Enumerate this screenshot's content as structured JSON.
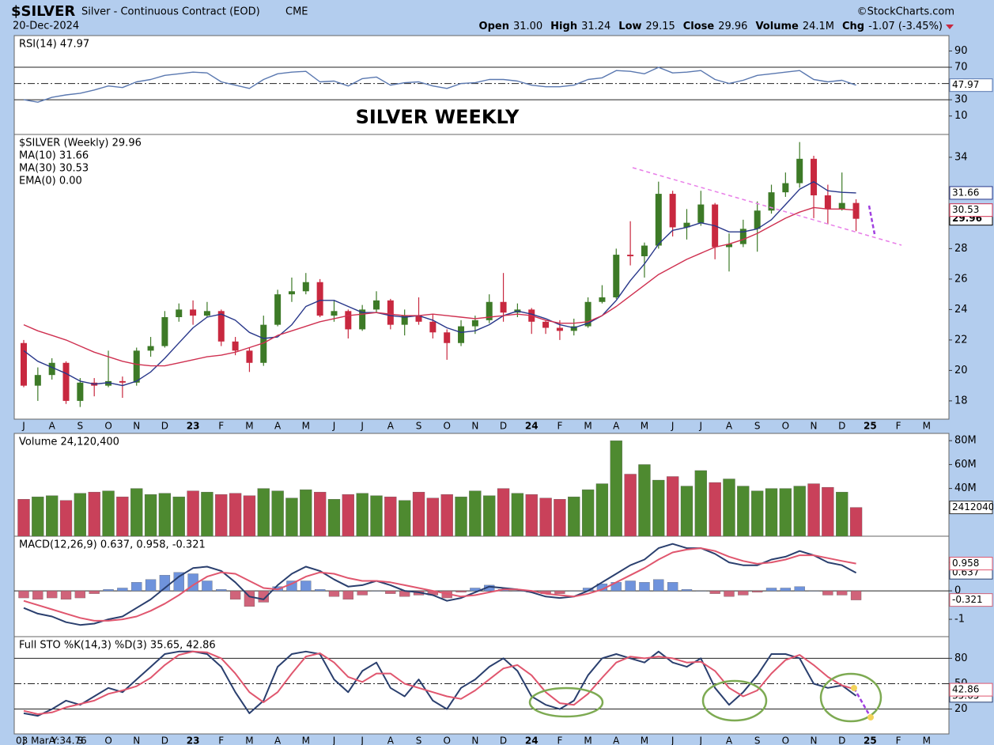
{
  "header": {
    "symbol": "$SILVER",
    "description": "Silver - Continuous Contract (EOD)",
    "exchange": "CME",
    "source": "©StockCharts.com",
    "date": "20-Dec-2024",
    "quote": [
      {
        "label": "Open",
        "value": "31.00"
      },
      {
        "label": "High",
        "value": "31.24"
      },
      {
        "label": "Low",
        "value": "29.15"
      },
      {
        "label": "Close",
        "value": "29.96"
      },
      {
        "label": "Volume",
        "value": "24.1M"
      },
      {
        "label": "Chg",
        "value": "-1.07 (-3.45%)"
      }
    ],
    "cursor": "03 Mar Y:34.76"
  },
  "chart_data": [
    {
      "type": "line",
      "annotation": "SILVER WEEKLY",
      "series": [
        {
          "name": "RSI(14) 47.97",
          "color": "#5a78b0",
          "values": [
            30,
            27,
            33,
            36,
            38,
            42,
            47,
            45,
            52,
            55,
            60,
            62,
            64,
            63,
            52,
            48,
            44,
            55,
            62,
            64,
            65,
            52,
            53,
            47,
            56,
            58,
            48,
            51,
            52,
            47,
            44,
            50,
            51,
            55,
            55,
            53,
            48,
            46,
            46,
            48,
            55,
            57,
            66,
            65,
            62,
            70,
            63,
            64,
            66,
            55,
            50,
            54,
            60,
            62,
            64,
            66,
            55,
            52,
            54,
            47.97,
            null,
            null,
            null,
            null,
            null,
            null
          ]
        }
      ],
      "ylim": [
        -12.7,
        109
      ],
      "yticks": [
        10,
        30,
        70,
        90
      ],
      "ref_lines": [
        {
          "value": 70,
          "style": "solid"
        },
        {
          "value": 50,
          "style": "dashdot"
        },
        {
          "value": 30,
          "style": "solid"
        }
      ]
    },
    {
      "type": "candlestick",
      "name": "$SILVER (Weekly) 29.96",
      "categories": [
        "J",
        null,
        "A",
        null,
        "S",
        null,
        "O",
        null,
        "N",
        null,
        "D",
        null,
        "23",
        null,
        "F",
        null,
        "M",
        null,
        "A",
        null,
        "M",
        null,
        "J",
        null,
        "J",
        null,
        "A",
        null,
        "S",
        null,
        "O",
        null,
        "N",
        null,
        "D",
        null,
        "24",
        null,
        "F",
        null,
        "M",
        null,
        "A",
        null,
        "M",
        null,
        "J",
        null,
        "J",
        null,
        "A",
        null,
        "S",
        null,
        "O",
        null,
        "N",
        null,
        "D",
        null,
        "25",
        null,
        "F",
        null,
        "M",
        null
      ],
      "open": [
        21.8,
        19.0,
        19.7,
        20.5,
        18.0,
        19.2,
        19.0,
        19.3,
        19.2,
        21.3,
        21.6,
        23.5,
        24.0,
        23.6,
        23.9,
        21.9,
        21.3,
        20.5,
        23.0,
        25.0,
        25.2,
        25.8,
        23.6,
        23.9,
        22.7,
        24.0,
        24.6,
        23.0,
        23.6,
        23.2,
        22.5,
        21.8,
        22.9,
        23.3,
        24.5,
        23.8,
        24.0,
        23.2,
        22.8,
        22.6,
        22.9,
        24.5,
        24.8,
        27.6,
        27.5,
        28.2,
        31.6,
        29.4,
        29.7,
        30.9,
        28.1,
        28.3,
        29.3,
        30.5,
        31.7,
        32.3,
        33.9,
        31.5,
        30.6,
        31.0,
        null,
        null,
        null,
        null,
        null,
        null
      ],
      "high": [
        22.0,
        20.2,
        20.8,
        20.6,
        19.5,
        19.5,
        21.3,
        19.6,
        21.5,
        22.2,
        23.9,
        24.4,
        24.6,
        24.5,
        24.0,
        22.2,
        21.5,
        23.6,
        25.3,
        26.1,
        26.4,
        26.0,
        24.6,
        24.0,
        24.3,
        25.2,
        24.7,
        24.0,
        24.8,
        23.7,
        22.7,
        23.3,
        23.6,
        25.0,
        26.4,
        24.4,
        24.1,
        23.3,
        23.3,
        23.4,
        24.8,
        25.6,
        28.0,
        29.8,
        28.4,
        32.4,
        31.8,
        30.6,
        31.8,
        31.0,
        29.0,
        29.9,
        31.1,
        32.2,
        33.0,
        35.0,
        34.1,
        32.2,
        33.0,
        31.24,
        null,
        null,
        null,
        null,
        null,
        null
      ],
      "low": [
        18.9,
        18.0,
        19.4,
        17.8,
        17.6,
        18.3,
        18.9,
        18.2,
        19.0,
        20.9,
        21.5,
        23.2,
        23.0,
        23.5,
        21.6,
        21.0,
        19.9,
        20.3,
        22.9,
        24.5,
        25.0,
        23.5,
        23.2,
        22.1,
        22.6,
        23.8,
        22.7,
        22.3,
        23.0,
        22.1,
        20.7,
        21.6,
        22.4,
        23.1,
        23.2,
        23.5,
        22.4,
        22.4,
        22.0,
        22.3,
        22.8,
        24.4,
        24.7,
        26.9,
        26.1,
        28.0,
        28.8,
        28.6,
        29.5,
        27.3,
        26.5,
        28.1,
        27.8,
        30.3,
        31.4,
        32.0,
        30.0,
        29.6,
        30.5,
        29.15,
        null,
        null,
        null,
        null,
        null,
        null
      ],
      "close": [
        19.0,
        19.7,
        20.5,
        18.0,
        19.2,
        19.0,
        19.3,
        19.2,
        21.3,
        21.6,
        23.5,
        24.0,
        23.6,
        23.9,
        21.9,
        21.3,
        20.5,
        23.0,
        25.0,
        25.2,
        25.8,
        23.6,
        23.9,
        22.7,
        24.0,
        24.6,
        23.0,
        23.6,
        23.2,
        22.5,
        21.8,
        22.9,
        23.3,
        24.5,
        23.8,
        24.0,
        23.2,
        22.8,
        22.6,
        22.9,
        24.5,
        24.8,
        27.6,
        27.5,
        28.2,
        31.6,
        29.4,
        29.7,
        30.9,
        28.1,
        28.3,
        29.3,
        30.5,
        31.7,
        32.3,
        33.9,
        31.5,
        30.6,
        31.0,
        29.96,
        null,
        null,
        null,
        null,
        null,
        null
      ],
      "up_color": "#3d7a27",
      "down_color": "#c8283f",
      "series": [
        {
          "name": "MA(10) 31.66",
          "color": "#28378a",
          "values": [
            21.3,
            20.6,
            20.2,
            19.8,
            19.3,
            19.1,
            19.2,
            19.0,
            19.3,
            19.9,
            20.8,
            21.8,
            22.8,
            23.5,
            23.7,
            23.3,
            22.5,
            22.1,
            22.2,
            23.0,
            24.2,
            24.6,
            24.6,
            24.2,
            23.8,
            23.8,
            23.6,
            23.5,
            23.6,
            23.3,
            22.8,
            22.5,
            22.6,
            23.0,
            23.6,
            23.9,
            23.7,
            23.4,
            23.0,
            22.8,
            23.1,
            23.6,
            24.6,
            25.9,
            27.0,
            28.3,
            29.2,
            29.4,
            29.7,
            29.5,
            29.1,
            29.1,
            29.3,
            29.9,
            30.9,
            31.9,
            32.4,
            31.8,
            31.7,
            31.66,
            null,
            null,
            null,
            null,
            null,
            null
          ]
        },
        {
          "name": "MA(30) 30.53",
          "color": "#cf3050",
          "values": [
            23.0,
            22.6,
            22.3,
            22.0,
            21.6,
            21.2,
            20.9,
            20.6,
            20.4,
            20.3,
            20.3,
            20.5,
            20.7,
            20.9,
            21.0,
            21.2,
            21.5,
            21.8,
            22.3,
            22.6,
            22.9,
            23.2,
            23.4,
            23.6,
            23.7,
            23.8,
            23.7,
            23.6,
            23.6,
            23.7,
            23.6,
            23.5,
            23.4,
            23.5,
            23.6,
            23.7,
            23.6,
            23.3,
            23.1,
            23.1,
            23.2,
            23.6,
            24.2,
            24.9,
            25.6,
            26.3,
            26.8,
            27.3,
            27.7,
            28.1,
            28.3,
            28.6,
            29.0,
            29.5,
            30.0,
            30.4,
            30.7,
            30.6,
            30.6,
            30.53,
            null,
            null,
            null,
            null,
            null,
            null
          ]
        },
        {
          "name": "EMA(0) 0.00",
          "color": "#2e7d32"
        }
      ],
      "ylim": [
        16.8,
        35.5
      ],
      "yticks": [
        18,
        20,
        22,
        24,
        26,
        28,
        34
      ]
    },
    {
      "type": "bar",
      "up_color": "#4e8a30",
      "down_color": "#c9415a",
      "series": [
        {
          "name": "Volume 24,120,400",
          "color": "#333333",
          "values": [
            31000000,
            33000000,
            34000000,
            30000000,
            36000000,
            37000000,
            38000000,
            33000000,
            40000000,
            35000000,
            36000000,
            33000000,
            38000000,
            37000000,
            35000000,
            36000000,
            34000000,
            40000000,
            38000000,
            32000000,
            39000000,
            37000000,
            31000000,
            35000000,
            36000000,
            34000000,
            33000000,
            30000000,
            37000000,
            32000000,
            35000000,
            33000000,
            38000000,
            34000000,
            40000000,
            36000000,
            35000000,
            32000000,
            31000000,
            33000000,
            39000000,
            44000000,
            80000000,
            52000000,
            60000000,
            47000000,
            50000000,
            42000000,
            55000000,
            45000000,
            48000000,
            42000000,
            38000000,
            40000000,
            40000000,
            42000000,
            44000000,
            41000000,
            37000000,
            24120400,
            null,
            null,
            null,
            null,
            null,
            null
          ]
        }
      ],
      "ylim": [
        0,
        86100000
      ],
      "yticks": [
        {
          "value": 40000000,
          "label": "40M"
        },
        {
          "value": 60000000,
          "label": "60M"
        },
        {
          "value": 80000000,
          "label": "80M"
        }
      ]
    },
    {
      "type": "line",
      "title": "MACD(12,26,9) 0.637, 0.958, -0.321",
      "series": [
        {
          "color": "#2a3f6e",
          "values": [
            -0.6,
            -0.8,
            -0.9,
            -1.1,
            -1.2,
            -1.15,
            -1.0,
            -0.9,
            -0.6,
            -0.3,
            0.1,
            0.5,
            0.8,
            0.85,
            0.7,
            0.3,
            -0.2,
            -0.3,
            0.2,
            0.6,
            0.85,
            0.7,
            0.4,
            0.15,
            0.2,
            0.35,
            0.2,
            0.0,
            -0.05,
            -0.15,
            -0.35,
            -0.25,
            -0.05,
            0.15,
            0.1,
            0.05,
            -0.05,
            -0.2,
            -0.25,
            -0.2,
            0.0,
            0.3,
            0.6,
            0.9,
            1.1,
            1.5,
            1.65,
            1.5,
            1.5,
            1.3,
            1.0,
            0.9,
            0.9,
            1.1,
            1.2,
            1.4,
            1.25,
            1.0,
            0.9,
            0.637,
            null,
            null,
            null,
            null,
            null,
            null
          ]
        },
        {
          "color": "#e0566e",
          "values": [
            -0.35,
            -0.5,
            -0.65,
            -0.8,
            -0.95,
            -1.05,
            -1.05,
            -1.0,
            -0.9,
            -0.7,
            -0.45,
            -0.15,
            0.2,
            0.5,
            0.65,
            0.6,
            0.35,
            0.1,
            0.05,
            0.25,
            0.5,
            0.65,
            0.6,
            0.45,
            0.35,
            0.35,
            0.3,
            0.2,
            0.1,
            0.0,
            -0.1,
            -0.2,
            -0.15,
            -0.05,
            0.05,
            0.05,
            0.0,
            -0.1,
            -0.15,
            -0.2,
            -0.1,
            0.05,
            0.3,
            0.55,
            0.8,
            1.1,
            1.35,
            1.45,
            1.5,
            1.4,
            1.2,
            1.05,
            0.95,
            1.0,
            1.1,
            1.25,
            1.25,
            1.15,
            1.05,
            0.958,
            null,
            null,
            null,
            null,
            null,
            null
          ]
        },
        {
          "type": "bar",
          "color": "#d0637a",
          "up_color": "#6f93dc",
          "down_color": "#d0637a",
          "values": [
            -0.25,
            -0.3,
            -0.25,
            -0.3,
            -0.25,
            -0.1,
            0.05,
            0.1,
            0.3,
            0.4,
            0.55,
            0.65,
            0.6,
            0.35,
            0.05,
            -0.3,
            -0.55,
            -0.4,
            0.15,
            0.35,
            0.35,
            0.05,
            -0.2,
            -0.3,
            -0.15,
            0.0,
            -0.1,
            -0.2,
            -0.15,
            -0.15,
            -0.25,
            -0.05,
            0.1,
            0.2,
            0.05,
            0.0,
            -0.05,
            -0.1,
            -0.1,
            0.0,
            0.1,
            0.25,
            0.3,
            0.35,
            0.3,
            0.4,
            0.3,
            0.05,
            0.0,
            -0.1,
            -0.2,
            -0.15,
            -0.05,
            0.1,
            0.1,
            0.15,
            0.0,
            -0.15,
            -0.15,
            -0.321,
            null,
            null,
            null,
            null,
            null,
            null
          ]
        }
      ],
      "ylim": [
        -1.61,
        1.92
      ],
      "yticks": [
        -1,
        0,
        1
      ],
      "ref_lines": [
        {
          "value": 0,
          "style": "solid"
        }
      ]
    },
    {
      "type": "line",
      "title": "Full STO %K(14,3) %D(3) 35.65, 42.86",
      "series": [
        {
          "color": "#2a3f6e",
          "values": [
            15,
            12,
            20,
            30,
            25,
            35,
            45,
            40,
            55,
            70,
            85,
            88,
            88,
            85,
            70,
            40,
            15,
            30,
            70,
            85,
            88,
            85,
            55,
            40,
            65,
            75,
            45,
            35,
            55,
            30,
            20,
            45,
            55,
            70,
            80,
            65,
            35,
            25,
            20,
            30,
            60,
            80,
            85,
            80,
            75,
            88,
            75,
            70,
            80,
            45,
            25,
            40,
            60,
            85,
            85,
            80,
            50,
            45,
            48,
            35.65,
            null,
            null,
            null,
            null,
            null,
            null
          ]
        },
        {
          "color": "#e0566e",
          "values": [
            18,
            14,
            16,
            22,
            26,
            30,
            38,
            42,
            47,
            57,
            72,
            84,
            88,
            87,
            80,
            62,
            40,
            28,
            40,
            62,
            82,
            86,
            75,
            58,
            52,
            62,
            62,
            50,
            45,
            40,
            35,
            32,
            42,
            55,
            68,
            72,
            60,
            40,
            27,
            25,
            38,
            57,
            75,
            82,
            80,
            82,
            80,
            75,
            76,
            65,
            45,
            35,
            42,
            62,
            78,
            84,
            72,
            58,
            48,
            42.86,
            null,
            null,
            null,
            null,
            null,
            null
          ]
        }
      ],
      "ylim": [
        -9.4,
        105.6
      ],
      "yticks": [
        20,
        50,
        80
      ],
      "ref_lines": [
        {
          "value": 80,
          "style": "solid"
        },
        {
          "value": 50,
          "style": "dashdot"
        },
        {
          "value": 20,
          "style": "solid"
        }
      ]
    }
  ]
}
